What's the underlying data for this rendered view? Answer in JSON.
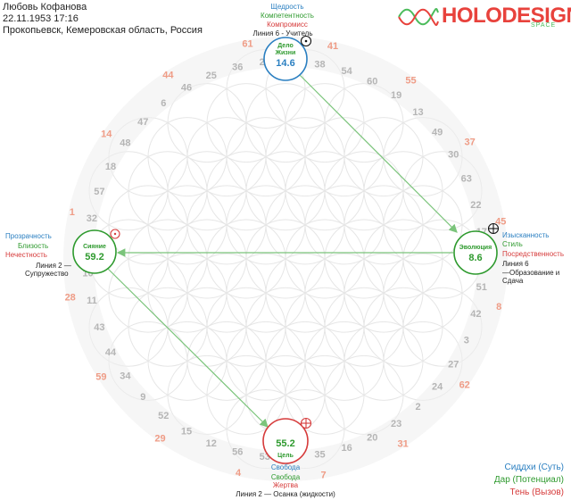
{
  "header": {
    "name": "Любовь Кофанова",
    "datetime": "22.11.1953 17:16",
    "place": "Прокопьевск, Кемеровская область, Россия"
  },
  "logo": {
    "text": "HOLODESIGN",
    "sub": "SPACE"
  },
  "colors": {
    "siddhi": "#2a7fc1",
    "gift": "#2e9a2e",
    "shadow": "#d63b3b",
    "arrow": "#7bc47b",
    "number_gray": "#b5b5b5",
    "number_red": "#ef9c86"
  },
  "ring_numbers": {
    "gray": [
      "58",
      "38",
      "54",
      "60",
      "19",
      "13",
      "49",
      "30",
      "63",
      "22",
      "17",
      "21",
      "51",
      "42",
      "3",
      "27",
      "24",
      "2",
      "23",
      "20",
      "16",
      "35",
      "39",
      "53",
      "56",
      "12",
      "15",
      "52",
      "9",
      "34",
      "44",
      "43",
      "11",
      "10",
      "50",
      "32",
      "57",
      "18",
      "48",
      "47",
      "6",
      "46",
      "25",
      "36",
      "26"
    ],
    "red": [
      "61",
      "41",
      "55",
      "37",
      "45",
      "8",
      "62",
      "31",
      "7",
      "4",
      "29",
      "59",
      "28",
      "1",
      "14",
      "44"
    ]
  },
  "spheres": {
    "life_work": {
      "title_line1": "Дело",
      "title_line2": "Жизни",
      "value": "14.6",
      "siddhi": "Щедрость",
      "gift": "Компетентность",
      "shadow": "Компромисс",
      "line": "Линия 6 - Учитель",
      "planet_icon": "sun-icon"
    },
    "evolution": {
      "title": "Эволюция",
      "value": "8.6",
      "siddhi": "Изысканность",
      "gift": "Стиль",
      "shadow": "Посредственность",
      "line1": "Линия 6",
      "line2": "—Образование и",
      "line3": "Сдача",
      "planet_icon": "earth-icon"
    },
    "radiance": {
      "title": "Сияние",
      "value": "59.2",
      "siddhi": "Прозрачность",
      "gift": "Близость",
      "shadow": "Нечестность",
      "line1": "Линия 2 —",
      "line2": "Супружество",
      "planet_icon": "sun-icon"
    },
    "purpose": {
      "title": "Цель",
      "value": "55.2",
      "siddhi": "Свобода",
      "gift": "Свобода",
      "shadow": "Жертва",
      "line": "Линия 2 — Осанка (жидкости)",
      "planet_icon": "earth-icon"
    }
  },
  "legend": {
    "siddhi": "Сиддхи (Суть)",
    "gift": "Дар (Потенциал)",
    "shadow": "Тень (Вызов)"
  }
}
